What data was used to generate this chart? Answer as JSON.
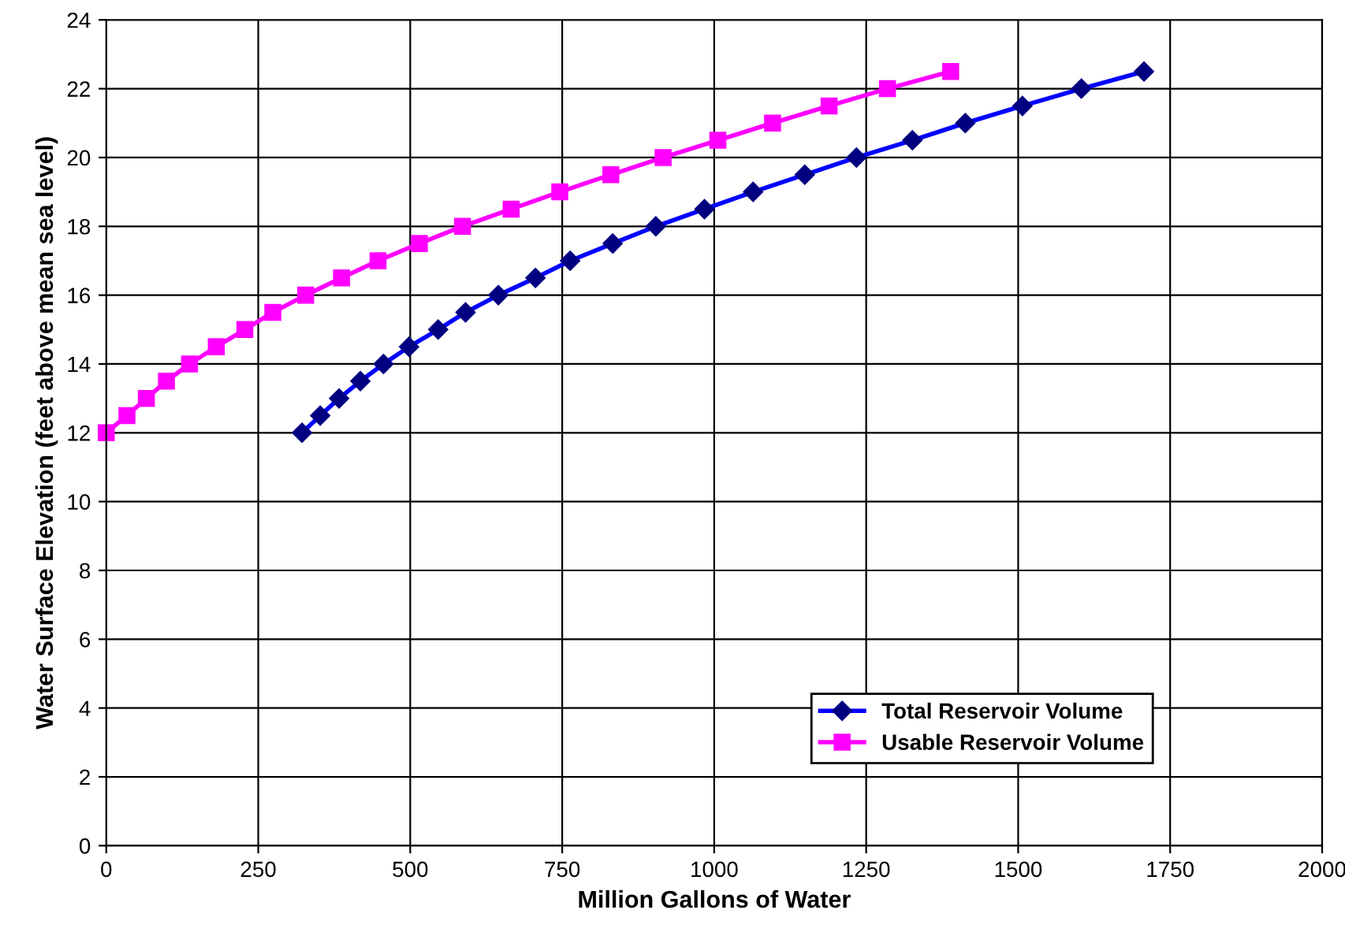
{
  "chart_data": {
    "type": "line",
    "xlabel": "Million Gallons of Water",
    "ylabel": "Water Surface Elevation (feet above mean sea level)",
    "xlim": [
      0,
      2000
    ],
    "xticks": [
      0,
      250,
      500,
      750,
      1000,
      1250,
      1500,
      1750,
      2000
    ],
    "ylim": [
      0,
      24
    ],
    "yticks": [
      0,
      2,
      4,
      6,
      8,
      10,
      12,
      14,
      16,
      18,
      20,
      22,
      24
    ],
    "grid": true,
    "legend": "bottom right",
    "series": [
      {
        "name": "Total Reservoir Volume",
        "color": "#0000ff",
        "marker": "diamond",
        "x": [
          322,
          352,
          383,
          418,
          456,
          498,
          546,
          591,
          645,
          706,
          763,
          833,
          904,
          984,
          1064,
          1149,
          1234,
          1326,
          1413,
          1507,
          1604,
          1707
        ],
        "values": [
          12,
          12.5,
          13,
          13.5,
          14,
          14.5,
          15,
          15.5,
          16,
          16.5,
          17,
          17.5,
          18,
          18.5,
          19,
          19.5,
          20,
          20.5,
          21,
          21.5,
          22,
          22.5
        ]
      },
      {
        "name": "Usable Reservoir Volume",
        "color": "#ff00ff",
        "marker": "square",
        "x": [
          0,
          34,
          66,
          99,
          137,
          181,
          228,
          274,
          328,
          387,
          447,
          515,
          586,
          666,
          746,
          830,
          916,
          1006,
          1096,
          1189,
          1285,
          1389
        ],
        "values": [
          12,
          12.5,
          13,
          13.5,
          14,
          14.5,
          15,
          15.5,
          16,
          16.5,
          17,
          17.5,
          18,
          18.5,
          19,
          19.5,
          20,
          20.5,
          21,
          21.5,
          22,
          22.5
        ]
      }
    ]
  }
}
